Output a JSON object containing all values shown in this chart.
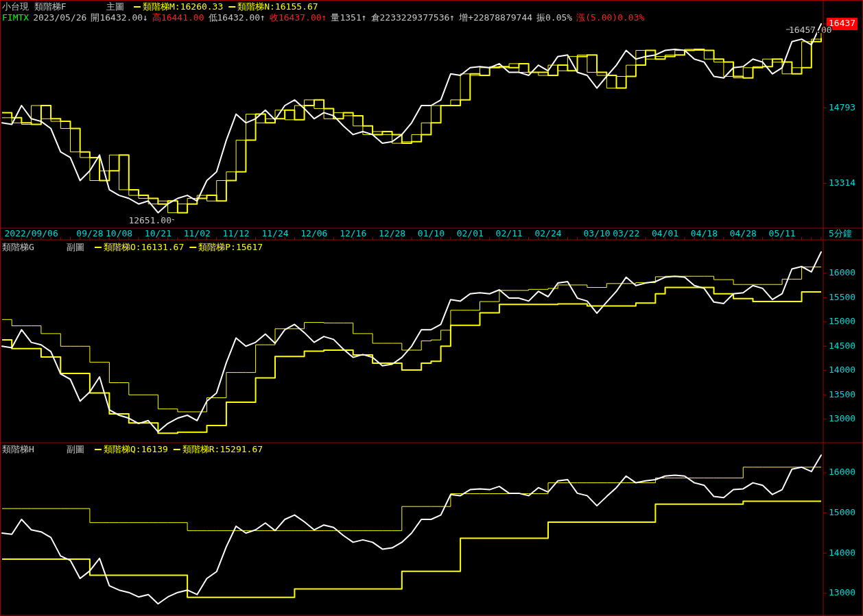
{
  "chart_data": [
    {
      "type": "line",
      "title": "小台現 類階梯F",
      "subtitle": "主圖",
      "legend": "top left",
      "xlabel": "5分鐘",
      "categories": [
        null,
        null,
        null,
        "2022/09/06",
        null,
        null,
        null,
        null,
        null,
        "09/28",
        null,
        null,
        "10/08",
        null,
        null,
        null,
        "10/21",
        null,
        null,
        null,
        "11/02",
        null,
        null,
        null,
        "11/12",
        null,
        null,
        null,
        "11/24",
        null,
        null,
        null,
        "12/06",
        null,
        null,
        null,
        "12/16",
        null,
        null,
        null,
        "12/28",
        null,
        null,
        null,
        "01/10",
        null,
        null,
        null,
        "02/01",
        null,
        null,
        null,
        "02/11",
        null,
        null,
        null,
        "02/24",
        null,
        null,
        null,
        null,
        "03/10",
        null,
        null,
        "03/22",
        null,
        null,
        null,
        "04/01",
        null,
        null,
        null,
        "04/18",
        null,
        null,
        null,
        "04/28",
        null,
        null,
        null,
        "05/11",
        null,
        null,
        null,
        null
      ],
      "series": [
        {
          "color": "#ffffff",
          "values": [
            14500,
            14470,
            14840,
            14580,
            14530,
            14390,
            13930,
            13820,
            13370,
            13560,
            13870,
            13190,
            13080,
            13020,
            12910,
            12970,
            12740,
            12910,
            13020,
            13080,
            12970,
            13370,
            13540,
            14160,
            14670,
            14500,
            14580,
            14750,
            14560,
            14840,
            14950,
            14780,
            14580,
            14700,
            14640,
            14440,
            14270,
            14330,
            14270,
            14100,
            14130,
            14270,
            14500,
            14840,
            14840,
            14950,
            15460,
            15430,
            15580,
            15600,
            15580,
            15660,
            15490,
            15490,
            15430,
            15630,
            15520,
            15800,
            15830,
            15490,
            15430,
            15180,
            15410,
            15630,
            15920,
            15750,
            15800,
            15830,
            15920,
            15940,
            15920,
            15750,
            15690,
            15410,
            15380,
            15580,
            15600,
            15750,
            15690,
            15460,
            15580,
            16090,
            16140,
            16030,
            16440
          ]
        },
        {
          "name": "類階梯M:16260.33",
          "type": "step",
          "color": "#ffff00",
          "values": [
            14600,
            14500,
            14470,
            14840,
            14580,
            14530,
            14390,
            13930,
            13820,
            13370,
            13560,
            13870,
            13190,
            13080,
            13020,
            12910,
            12970,
            12740,
            12910,
            13020,
            13080,
            12970,
            13370,
            13540,
            14160,
            14670,
            14500,
            14580,
            14750,
            14560,
            14840,
            14950,
            14780,
            14580,
            14700,
            14640,
            14440,
            14270,
            14330,
            14270,
            14100,
            14130,
            14270,
            14500,
            14840,
            14840,
            14950,
            15460,
            15430,
            15580,
            15600,
            15580,
            15660,
            15490,
            15490,
            15430,
            15630,
            15520,
            15800,
            15830,
            15490,
            15430,
            15180,
            15410,
            15630,
            15920,
            15750,
            15800,
            15830,
            15920,
            15940,
            15920,
            15750,
            15690,
            15410,
            15380,
            15580,
            15600,
            15750,
            15690,
            15460,
            15580,
            16090,
            16140,
            16260
          ]
        },
        {
          "name": "類階梯N:16155.67",
          "type": "step",
          "color": "#ffff00",
          "values": [
            14700,
            14600,
            14500,
            14470,
            14840,
            14580,
            14530,
            14390,
            13930,
            13820,
            13370,
            13560,
            13870,
            13190,
            13080,
            13020,
            12910,
            12970,
            12740,
            12910,
            13020,
            13080,
            12970,
            13370,
            13540,
            14160,
            14670,
            14500,
            14580,
            14750,
            14560,
            14840,
            14950,
            14780,
            14580,
            14700,
            14640,
            14440,
            14270,
            14330,
            14270,
            14100,
            14130,
            14270,
            14500,
            14840,
            14840,
            14950,
            15460,
            15430,
            15580,
            15600,
            15580,
            15660,
            15490,
            15490,
            15430,
            15630,
            15520,
            15800,
            15830,
            15490,
            15430,
            15180,
            15410,
            15630,
            15920,
            15750,
            15800,
            15830,
            15920,
            15940,
            15920,
            15750,
            15690,
            15410,
            15380,
            15580,
            15600,
            15750,
            15690,
            15460,
            15580,
            16090,
            16160
          ]
        }
      ],
      "ylim": [
        12450,
        16900
      ],
      "yticks": [
        13314,
        14793,
        16437
      ],
      "annotations": [
        "FIMTX",
        "2023/05/26",
        "開16432.00↓",
        "高16441.00",
        "低16432.00↑",
        "收16437.00↑",
        "量1351↑",
        "倉2233229377536↑",
        "增+22878879744",
        "振0.05%",
        "漲(5.00)0.03%",
        "12651.00",
        "16457.00"
      ]
    },
    {
      "type": "line",
      "title": "類階梯G",
      "subtitle": "副圖",
      "legend": "top left",
      "tick_labels": "y",
      "categories": [
        null,
        null,
        null,
        null,
        null,
        null,
        null,
        null,
        null,
        null,
        null,
        null,
        null,
        null,
        null,
        null,
        null,
        null,
        null,
        null,
        null,
        null,
        null,
        null,
        null,
        null,
        null,
        null,
        null,
        null,
        null,
        null,
        null,
        null,
        null,
        null,
        null,
        null,
        null,
        null,
        null,
        null,
        null,
        null,
        null,
        null,
        null,
        null,
        null,
        null,
        null,
        null,
        null,
        null,
        null,
        null,
        null,
        null,
        null,
        null,
        null,
        null,
        null,
        null,
        null,
        null,
        null,
        null,
        null,
        null,
        null,
        null,
        null,
        null,
        null,
        null,
        null,
        null,
        null,
        null,
        null,
        null,
        null,
        null,
        null
      ],
      "series": [
        {
          "color": "#ffffff",
          "values": [
            14500,
            14470,
            14840,
            14580,
            14530,
            14390,
            13930,
            13820,
            13370,
            13560,
            13870,
            13190,
            13080,
            13020,
            12910,
            12970,
            12740,
            12910,
            13020,
            13080,
            12970,
            13370,
            13540,
            14160,
            14670,
            14500,
            14580,
            14750,
            14560,
            14840,
            14950,
            14780,
            14580,
            14700,
            14640,
            14440,
            14270,
            14330,
            14270,
            14100,
            14130,
            14270,
            14500,
            14840,
            14840,
            14950,
            15460,
            15430,
            15580,
            15600,
            15580,
            15660,
            15490,
            15490,
            15430,
            15630,
            15520,
            15800,
            15830,
            15490,
            15430,
            15180,
            15410,
            15630,
            15920,
            15750,
            15800,
            15830,
            15920,
            15940,
            15920,
            15750,
            15690,
            15410,
            15380,
            15580,
            15600,
            15750,
            15690,
            15460,
            15580,
            16090,
            16140,
            16030,
            16440
          ]
        },
        {
          "name": "類階梯O:16131.67",
          "type": "step",
          "color": "#ffff00",
          "values": [
            15050,
            14920,
            14920,
            14920,
            14760,
            14760,
            14500,
            14500,
            14500,
            14170,
            14170,
            13750,
            13750,
            13500,
            13500,
            13500,
            13210,
            13210,
            13150,
            13150,
            13150,
            13440,
            13440,
            13960,
            13960,
            13960,
            14530,
            14530,
            14860,
            14860,
            14860,
            14990,
            14990,
            14980,
            14980,
            14980,
            14760,
            14760,
            14560,
            14560,
            14560,
            14420,
            14420,
            14610,
            14630,
            14830,
            15240,
            15240,
            15240,
            15420,
            15420,
            15650,
            15650,
            15650,
            15670,
            15670,
            15690,
            15760,
            15760,
            15760,
            15710,
            15710,
            15790,
            15790,
            15790,
            15810,
            15810,
            15930,
            15940,
            15940,
            15940,
            15940,
            15940,
            15870,
            15870,
            15770,
            15770,
            15770,
            15770,
            15770,
            15880,
            15880,
            16130,
            16130,
            16130
          ]
        },
        {
          "name": "類階梯P:15617",
          "type": "step",
          "color": "#ffff00",
          "values": [
            14630,
            14450,
            14450,
            14450,
            14280,
            14280,
            13940,
            13940,
            13940,
            13540,
            13540,
            13110,
            13110,
            12920,
            12920,
            12920,
            12710,
            12710,
            12730,
            12730,
            12730,
            12870,
            12870,
            13350,
            13350,
            13350,
            13850,
            13850,
            14290,
            14290,
            14290,
            14400,
            14400,
            14420,
            14420,
            14420,
            14320,
            14320,
            14150,
            14150,
            14150,
            14010,
            14010,
            14150,
            14190,
            14500,
            14930,
            14930,
            14930,
            15190,
            15190,
            15360,
            15360,
            15360,
            15360,
            15360,
            15360,
            15370,
            15370,
            15370,
            15330,
            15330,
            15330,
            15330,
            15330,
            15390,
            15390,
            15580,
            15710,
            15710,
            15710,
            15710,
            15710,
            15580,
            15580,
            15480,
            15480,
            15420,
            15420,
            15420,
            15420,
            15420,
            15620,
            15620,
            15620
          ]
        }
      ],
      "ylim": [
        12530,
        16690
      ],
      "yticks": [
        13000,
        13500,
        14000,
        14500,
        15000,
        15500,
        16000
      ]
    },
    {
      "type": "line",
      "title": "類階梯H",
      "subtitle": "副圖",
      "legend": "top left",
      "tick_labels": "y",
      "categories": [
        null,
        null,
        null,
        null,
        null,
        null,
        null,
        null,
        null,
        null,
        null,
        null,
        null,
        null,
        null,
        null,
        null,
        null,
        null,
        null,
        null,
        null,
        null,
        null,
        null,
        null,
        null,
        null,
        null,
        null,
        null,
        null,
        null,
        null,
        null,
        null,
        null,
        null,
        null,
        null,
        null,
        null,
        null,
        null,
        null,
        null,
        null,
        null,
        null,
        null,
        null,
        null,
        null,
        null,
        null,
        null,
        null,
        null,
        null,
        null,
        null,
        null,
        null,
        null,
        null,
        null,
        null,
        null,
        null,
        null,
        null,
        null,
        null,
        null,
        null,
        null,
        null,
        null,
        null,
        null,
        null,
        null,
        null,
        null,
        null
      ],
      "series": [
        {
          "color": "#ffffff",
          "values": [
            14500,
            14470,
            14840,
            14580,
            14530,
            14390,
            13930,
            13820,
            13370,
            13560,
            13870,
            13190,
            13080,
            13020,
            12910,
            12970,
            12740,
            12910,
            13020,
            13080,
            12970,
            13370,
            13540,
            14160,
            14670,
            14500,
            14580,
            14750,
            14560,
            14840,
            14950,
            14780,
            14580,
            14700,
            14640,
            14440,
            14270,
            14330,
            14270,
            14100,
            14130,
            14270,
            14500,
            14840,
            14840,
            14950,
            15460,
            15430,
            15580,
            15600,
            15580,
            15660,
            15490,
            15490,
            15430,
            15630,
            15520,
            15800,
            15830,
            15490,
            15430,
            15180,
            15410,
            15630,
            15920,
            15750,
            15800,
            15830,
            15920,
            15940,
            15920,
            15750,
            15690,
            15410,
            15380,
            15580,
            15600,
            15750,
            15690,
            15460,
            15580,
            16090,
            16140,
            16030,
            16440
          ]
        },
        {
          "name": "類階梯Q:16139",
          "type": "step",
          "color": "#ffff00",
          "values": [
            15110,
            15110,
            15110,
            15110,
            15110,
            15110,
            15110,
            15110,
            15110,
            14760,
            14760,
            14760,
            14760,
            14760,
            14760,
            14760,
            14760,
            14760,
            14760,
            14560,
            14560,
            14560,
            14560,
            14560,
            14560,
            14560,
            14560,
            14560,
            14560,
            14560,
            14560,
            14560,
            14560,
            14560,
            14560,
            14560,
            14560,
            14560,
            14560,
            14560,
            14560,
            15160,
            15160,
            15160,
            15160,
            15160,
            15480,
            15480,
            15480,
            15480,
            15480,
            15480,
            15480,
            15480,
            15480,
            15480,
            15750,
            15750,
            15750,
            15750,
            15750,
            15750,
            15750,
            15750,
            15750,
            15750,
            15750,
            15870,
            15870,
            15870,
            15870,
            15870,
            15870,
            15870,
            15870,
            15870,
            16140,
            16140,
            16140,
            16140,
            16140,
            16140,
            16140,
            16140,
            16140
          ]
        },
        {
          "name": "類階梯R:15291.67",
          "type": "step",
          "color": "#ffff00",
          "values": [
            13850,
            13850,
            13850,
            13850,
            13850,
            13850,
            13850,
            13850,
            13850,
            13450,
            13450,
            13450,
            13450,
            13450,
            13450,
            13450,
            13450,
            13450,
            13450,
            12900,
            12900,
            12900,
            12900,
            12900,
            12900,
            12900,
            12900,
            12900,
            12900,
            12900,
            13110,
            13110,
            13110,
            13110,
            13110,
            13110,
            13110,
            13110,
            13110,
            13110,
            13110,
            13550,
            13550,
            13550,
            13550,
            13550,
            13550,
            14370,
            14370,
            14370,
            14370,
            14370,
            14370,
            14370,
            14370,
            14370,
            14770,
            14770,
            14770,
            14770,
            14770,
            14770,
            14770,
            14770,
            14770,
            14770,
            14770,
            15220,
            15220,
            15220,
            15220,
            15220,
            15220,
            15220,
            15220,
            15220,
            15290,
            15290,
            15290,
            15290,
            15290,
            15290,
            15290,
            15290,
            15290
          ]
        }
      ],
      "ylim": [
        12470,
        16750
      ],
      "yticks": [
        13000,
        14000,
        15000,
        16000
      ]
    }
  ]
}
